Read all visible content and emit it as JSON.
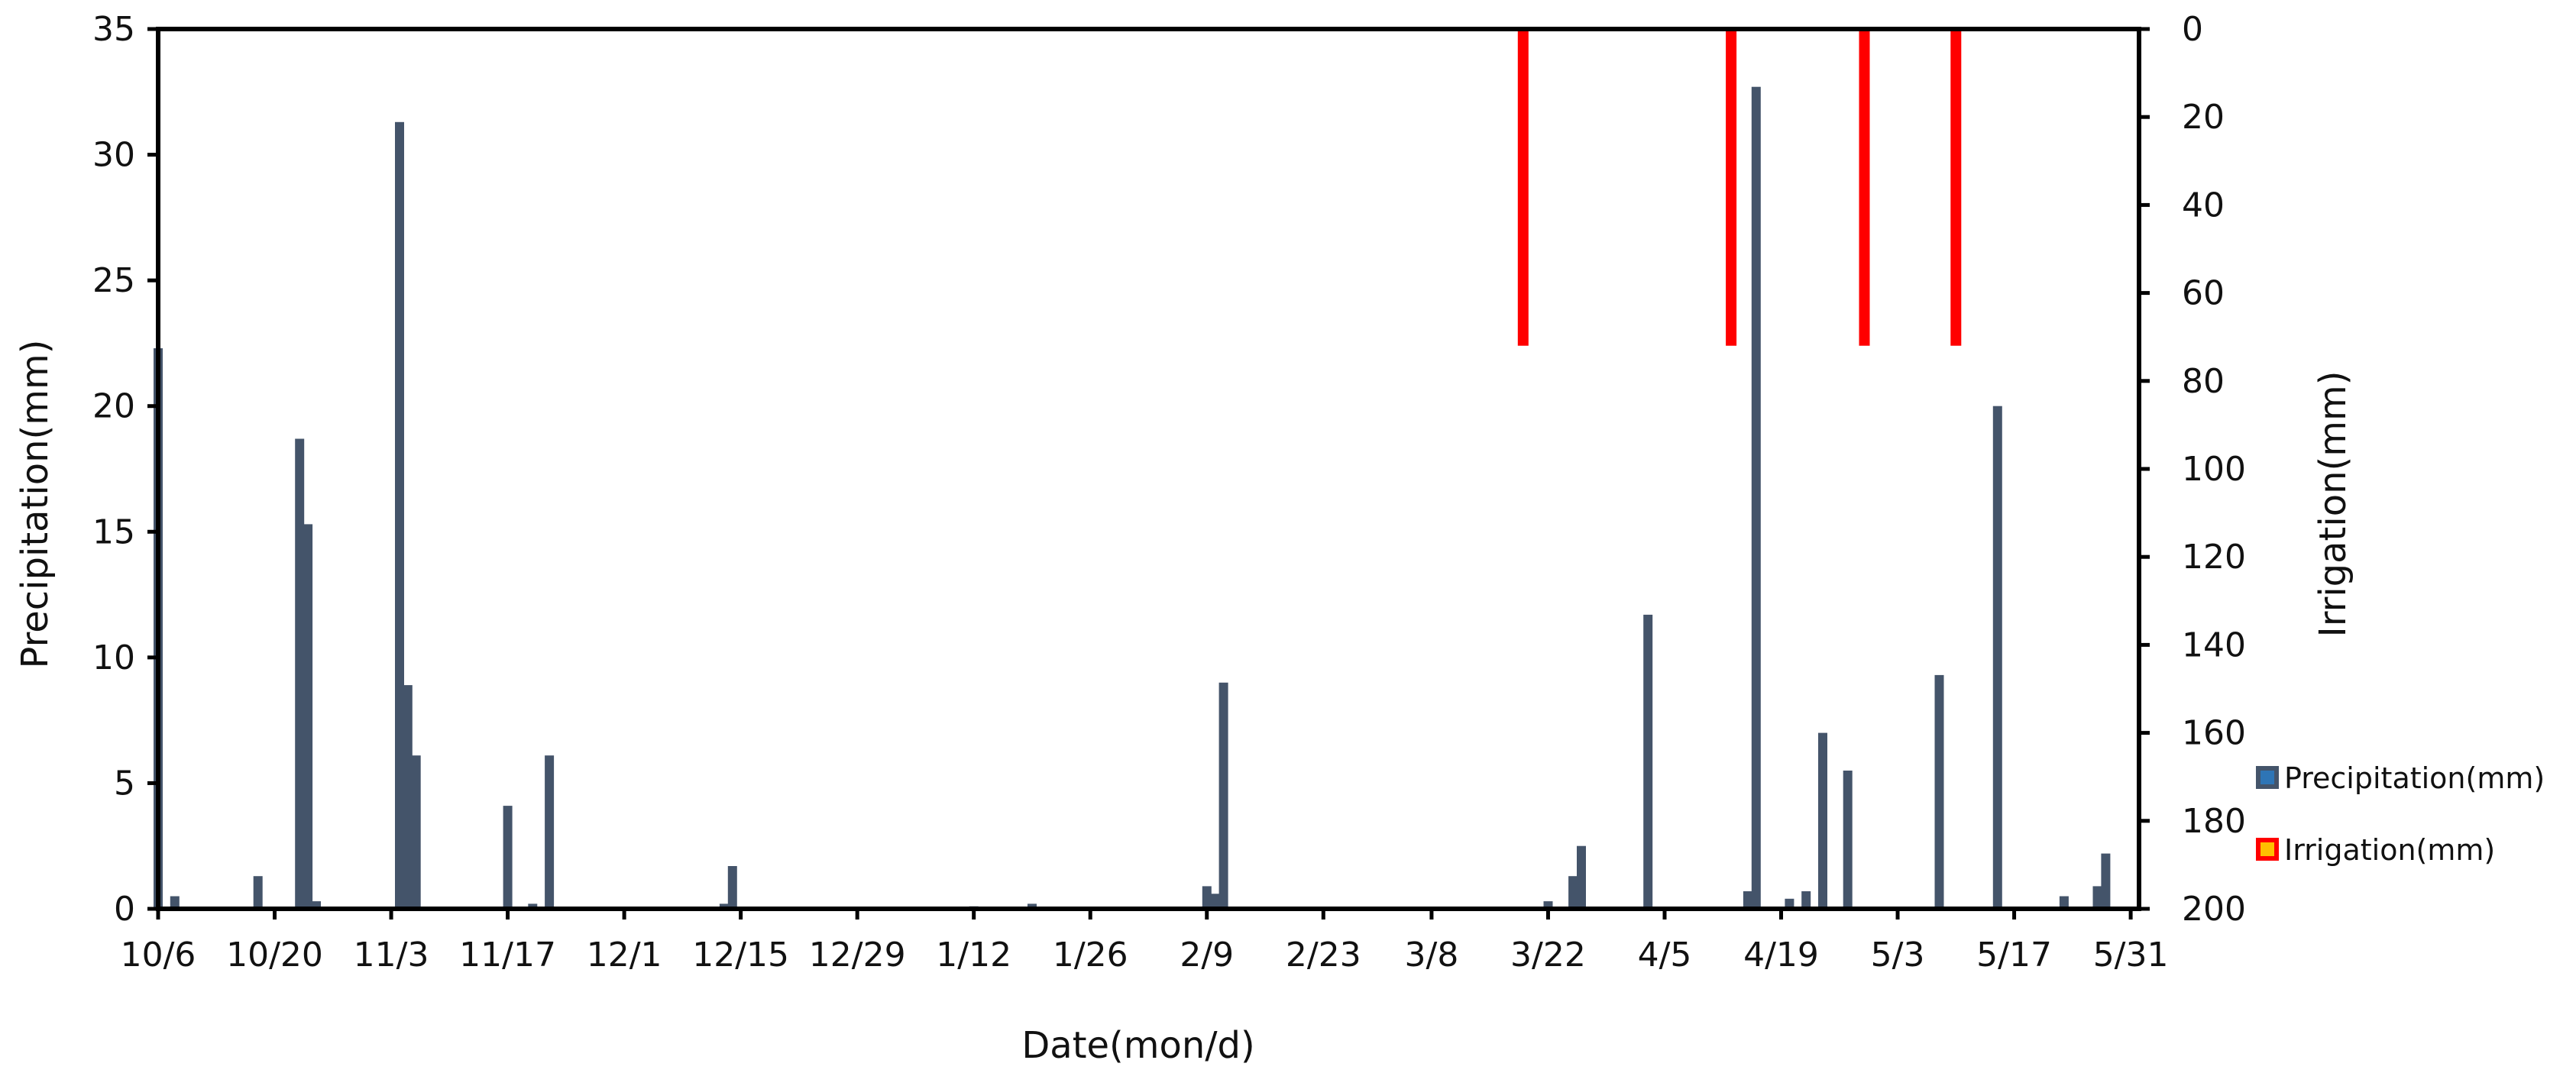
{
  "chart_data": {
    "type": "bar",
    "xlabel": "Date(mon/d)",
    "ylabel_left": "Precipitation(mm)",
    "ylabel_right": "Irrigation(mm)",
    "ylim_left": [
      0,
      35
    ],
    "ylim_right": [
      200,
      0
    ],
    "right_axis_inverted": true,
    "left_ticks": [
      0,
      5,
      10,
      15,
      20,
      25,
      30,
      35
    ],
    "right_ticks": [
      0,
      20,
      40,
      60,
      80,
      100,
      120,
      140,
      160,
      180,
      200
    ],
    "x_tick_labels": [
      "10/6",
      "10/20",
      "11/3",
      "11/17",
      "12/1",
      "12/15",
      "12/29",
      "1/12",
      "1/26",
      "2/9",
      "2/23",
      "3/8",
      "3/22",
      "4/5",
      "4/19",
      "5/3",
      "5/17",
      "5/31"
    ],
    "grid": false,
    "legend_placement": "right",
    "series": [
      {
        "name": "Precipitation(mm)",
        "color": "#44546a",
        "axis": "left",
        "points": [
          {
            "date": "10/6",
            "value": 22.3
          },
          {
            "date": "10/8",
            "value": 0.5
          },
          {
            "date": "10/18",
            "value": 1.3
          },
          {
            "date": "10/23",
            "value": 18.7
          },
          {
            "date": "10/24",
            "value": 15.3
          },
          {
            "date": "10/25",
            "value": 0.3
          },
          {
            "date": "11/4",
            "value": 31.3
          },
          {
            "date": "11/5",
            "value": 8.9
          },
          {
            "date": "11/6",
            "value": 6.1
          },
          {
            "date": "11/17",
            "value": 4.1
          },
          {
            "date": "11/20",
            "value": 0.2
          },
          {
            "date": "11/22",
            "value": 6.1
          },
          {
            "date": "12/13",
            "value": 0.2
          },
          {
            "date": "12/14",
            "value": 1.7
          },
          {
            "date": "1/12",
            "value": 0.1
          },
          {
            "date": "1/19",
            "value": 0.2
          },
          {
            "date": "2/9",
            "value": 0.9
          },
          {
            "date": "2/10",
            "value": 0.6
          },
          {
            "date": "2/11",
            "value": 9.0
          },
          {
            "date": "3/22",
            "value": 0.3
          },
          {
            "date": "3/25",
            "value": 1.3
          },
          {
            "date": "3/26",
            "value": 2.5
          },
          {
            "date": "4/3",
            "value": 11.7
          },
          {
            "date": "4/15",
            "value": 0.7
          },
          {
            "date": "4/16",
            "value": 32.7
          },
          {
            "date": "4/20",
            "value": 0.4
          },
          {
            "date": "4/22",
            "value": 0.7
          },
          {
            "date": "4/24",
            "value": 7.0
          },
          {
            "date": "4/27",
            "value": 5.5
          },
          {
            "date": "5/8",
            "value": 9.3
          },
          {
            "date": "5/15",
            "value": 20.0
          },
          {
            "date": "5/23",
            "value": 0.5
          },
          {
            "date": "5/27",
            "value": 0.9
          },
          {
            "date": "5/28",
            "value": 2.2
          }
        ]
      },
      {
        "name": "Irrigation(mm)",
        "color": "#ff0000",
        "axis": "right",
        "points": [
          {
            "date": "3/19",
            "value": 72
          },
          {
            "date": "4/13",
            "value": 72
          },
          {
            "date": "4/29",
            "value": 72
          },
          {
            "date": "5/10",
            "value": 72
          }
        ]
      }
    ]
  }
}
